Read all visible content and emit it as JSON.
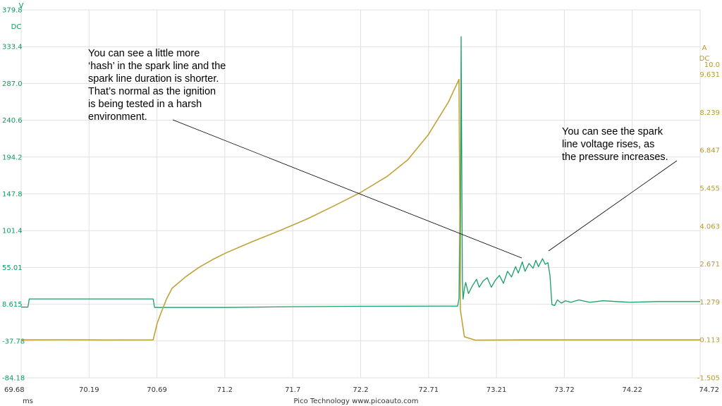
{
  "chart_data": {
    "type": "line",
    "footer": "Pico Technology   www.picoauto.com",
    "x_axis": {
      "unit": "ms",
      "range": [
        69.68,
        74.72
      ],
      "ticks": [
        "69.68",
        "70.19",
        "70.69",
        "71.2",
        "71.7",
        "72.2",
        "72.71",
        "73.21",
        "73.72",
        "74.22",
        "74.72"
      ]
    },
    "left_axis": {
      "unit_lines": [
        "V",
        "DC"
      ],
      "color": "#0e9a5e",
      "range": [
        -84.18,
        379.8
      ],
      "ticks": [
        "379.8",
        "333.4",
        "287.0",
        "240.6",
        "194.2",
        "147.8",
        "101.4",
        "55.01",
        "8.615",
        "-37.78",
        "-84.18"
      ]
    },
    "right_axis": {
      "unit_lines": [
        "A",
        "DC"
      ],
      "color": "#b59a2a",
      "range": [
        -1.505,
        12.0
      ],
      "ticks": [
        "10.0",
        "9.631",
        "8.239",
        "6.847",
        "5.455",
        "4.063",
        "2.671",
        "1.279",
        "-0.113",
        "-1.505"
      ]
    },
    "grid": true,
    "series": [
      {
        "color": "#18a064",
        "axis": "left",
        "points": [
          [
            69.68,
            5.0
          ],
          [
            69.73,
            5.0
          ],
          [
            69.74,
            15.3
          ],
          [
            70.66,
            15.3
          ],
          [
            70.67,
            4.5
          ],
          [
            71.2,
            4.5
          ],
          [
            71.7,
            5.5
          ],
          [
            72.2,
            6.0
          ],
          [
            72.92,
            6.3
          ],
          [
            72.93,
            16
          ],
          [
            72.936,
            120
          ],
          [
            72.94,
            28
          ],
          [
            72.946,
            346
          ],
          [
            72.95,
            200
          ],
          [
            72.955,
            40
          ],
          [
            72.96,
            15
          ],
          [
            72.97,
            28
          ],
          [
            72.98,
            36
          ],
          [
            73.0,
            22
          ],
          [
            73.03,
            32
          ],
          [
            73.06,
            40
          ],
          [
            73.08,
            30
          ],
          [
            73.11,
            38
          ],
          [
            73.14,
            42
          ],
          [
            73.17,
            30
          ],
          [
            73.2,
            39
          ],
          [
            73.23,
            45
          ],
          [
            73.26,
            35
          ],
          [
            73.29,
            50
          ],
          [
            73.32,
            43
          ],
          [
            73.35,
            56
          ],
          [
            73.37,
            48
          ],
          [
            73.4,
            62
          ],
          [
            73.42,
            50
          ],
          [
            73.45,
            60
          ],
          [
            73.48,
            54
          ],
          [
            73.5,
            64
          ],
          [
            73.52,
            56
          ],
          [
            73.55,
            66
          ],
          [
            73.57,
            59
          ],
          [
            73.59,
            61
          ],
          [
            73.605,
            45
          ],
          [
            73.62,
            8
          ],
          [
            73.64,
            7
          ],
          [
            73.66,
            14
          ],
          [
            73.69,
            10
          ],
          [
            73.72,
            13
          ],
          [
            73.76,
            11
          ],
          [
            73.82,
            14
          ],
          [
            73.9,
            11
          ],
          [
            74.0,
            13
          ],
          [
            74.2,
            11
          ],
          [
            74.4,
            12
          ],
          [
            74.72,
            12
          ]
        ]
      },
      {
        "color": "#c0a23a",
        "axis": "right",
        "points": [
          [
            69.68,
            -0.113
          ],
          [
            70.0,
            -0.11
          ],
          [
            70.3,
            -0.115
          ],
          [
            70.66,
            -0.113
          ],
          [
            70.69,
            0.5
          ],
          [
            70.72,
            0.9
          ],
          [
            70.76,
            1.4
          ],
          [
            70.8,
            1.78
          ],
          [
            70.9,
            2.2
          ],
          [
            71.0,
            2.55
          ],
          [
            71.1,
            2.83
          ],
          [
            71.2,
            3.08
          ],
          [
            71.4,
            3.5
          ],
          [
            71.6,
            3.9
          ],
          [
            71.8,
            4.32
          ],
          [
            72.0,
            4.8
          ],
          [
            72.2,
            5.3
          ],
          [
            72.4,
            5.9
          ],
          [
            72.55,
            6.5
          ],
          [
            72.7,
            7.4
          ],
          [
            72.85,
            8.6
          ],
          [
            72.93,
            9.45
          ],
          [
            72.94,
            1.0
          ],
          [
            72.97,
            0.0
          ],
          [
            73.05,
            -0.12
          ],
          [
            73.4,
            -0.113
          ],
          [
            74.0,
            -0.113
          ],
          [
            74.72,
            -0.113
          ]
        ]
      }
    ],
    "annotations": [
      {
        "lines": [
          "You can see a little more",
          "‘hash’ in the spark line and the",
          "spark line duration is shorter.",
          "That’s normal as the ignition",
          "is being tested in a harsh",
          "environment."
        ],
        "points_to": [
          73.36,
          62
        ]
      },
      {
        "lines": [
          "You can see the spark",
          "line voltage rises, as",
          "the pressure increases."
        ],
        "points_to": [
          73.51,
          64
        ]
      }
    ]
  }
}
